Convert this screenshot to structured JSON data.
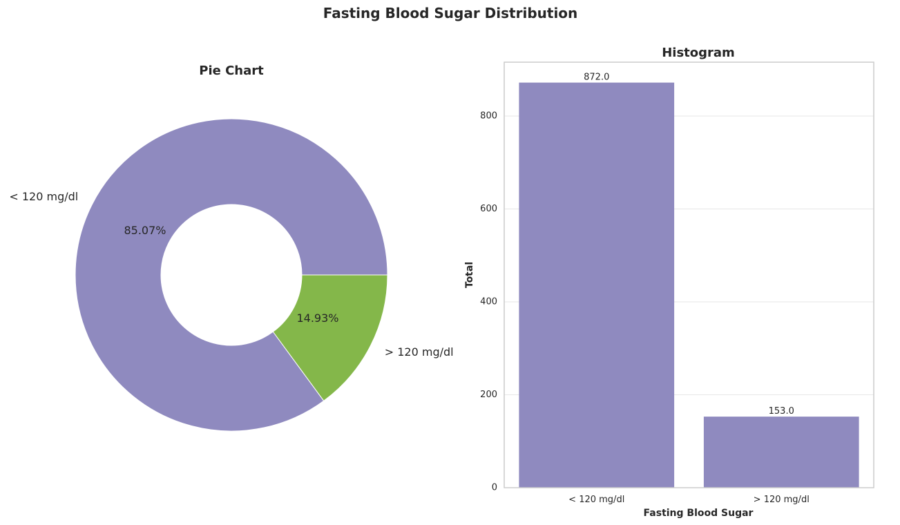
{
  "figure": {
    "title": "Fasting Blood Sugar Distribution"
  },
  "chart_data": [
    {
      "type": "pie",
      "title": "Pie Chart",
      "donut": true,
      "categories": [
        "< 120 mg/dl",
        "> 120 mg/dl"
      ],
      "values": [
        872,
        153
      ],
      "percent_labels": [
        "85.07%",
        "14.93%"
      ],
      "colors": [
        "#8F8ABF",
        "#84B74A"
      ]
    },
    {
      "type": "bar",
      "title": "Histogram",
      "categories": [
        "< 120 mg/dl",
        "> 120 mg/dl"
      ],
      "values": [
        872,
        153
      ],
      "value_labels": [
        "872.0",
        "153.0"
      ],
      "xlabel": "Fasting Blood Sugar",
      "ylabel": "Total",
      "ylim": [
        0,
        916
      ],
      "yticks": [
        0,
        200,
        400,
        600,
        800
      ],
      "grid": true,
      "colors": [
        "#8F8ABF",
        "#8F8ABF"
      ]
    }
  ]
}
